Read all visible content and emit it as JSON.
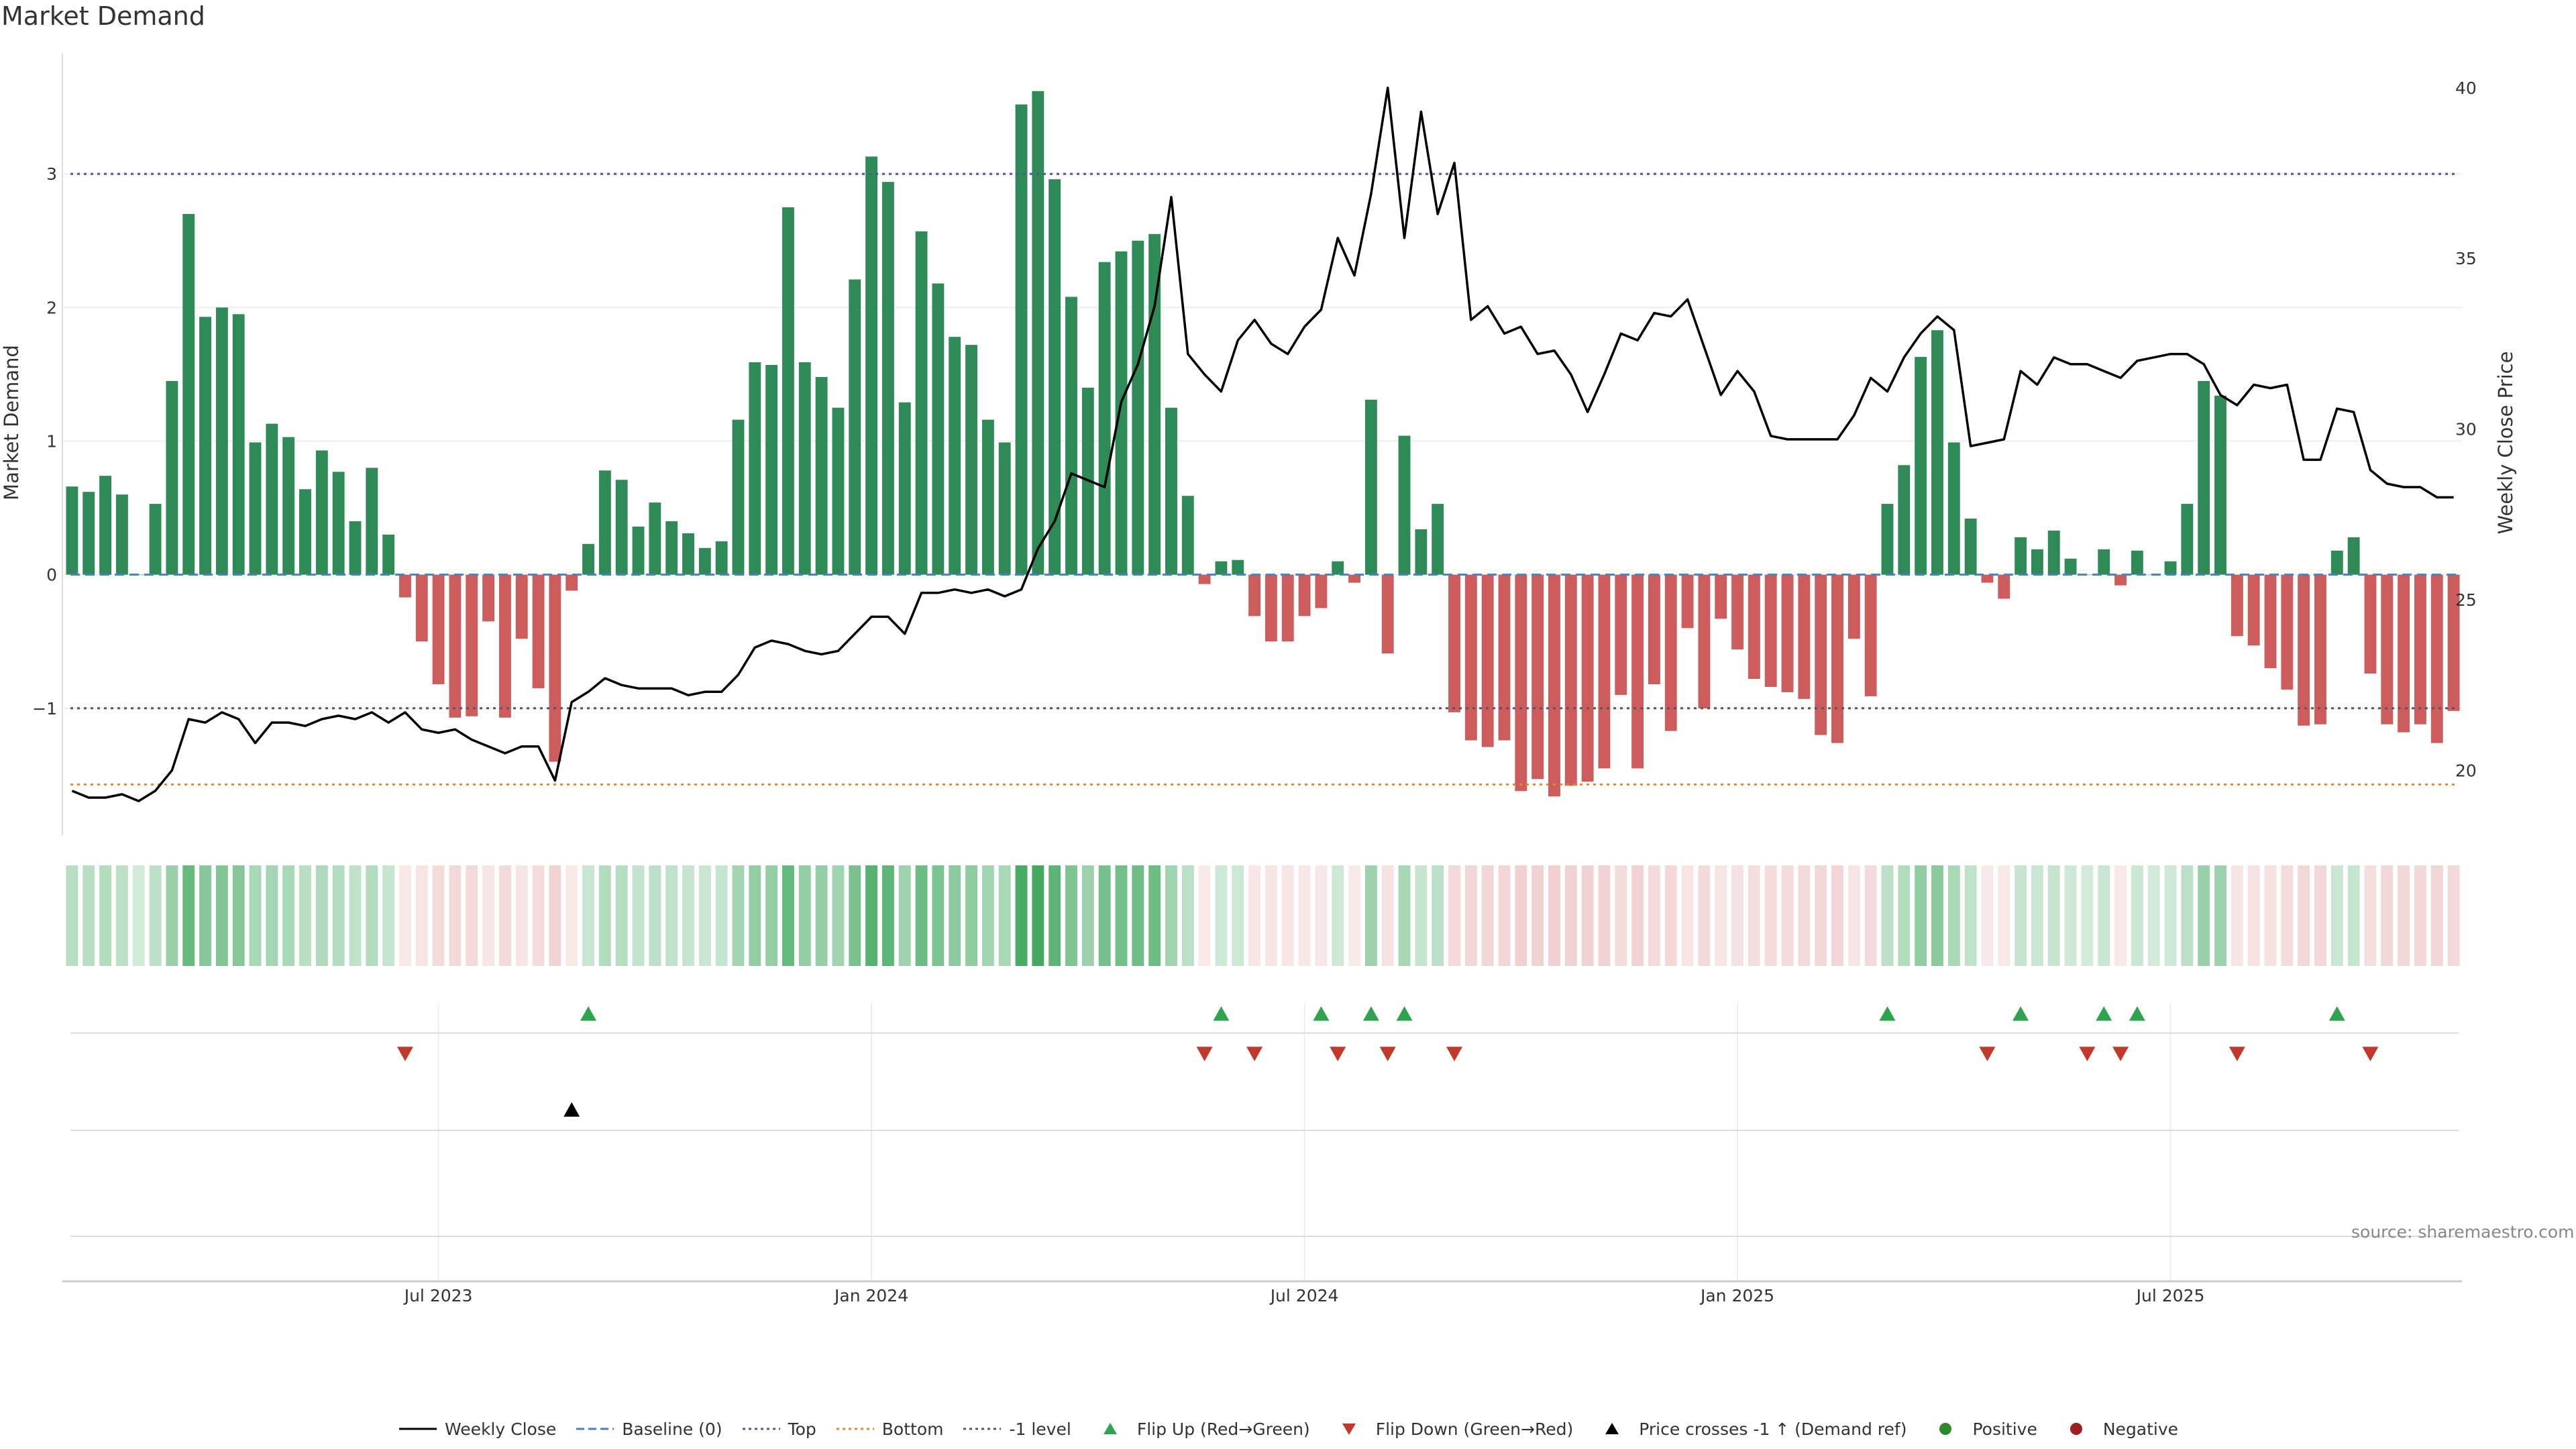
{
  "chart_data": {
    "type": "bar+line",
    "title": "Market Demand",
    "ylabel_left": "Market Demand",
    "ylabel_right": "Weekly Close Price",
    "ylim_left": [
      -1.95,
      3.9
    ],
    "yticks_left": [
      -1,
      0,
      1,
      2,
      3
    ],
    "ylim_right": [
      18.1,
      41.0
    ],
    "yticks_right": [
      20,
      25,
      30,
      35,
      40
    ],
    "reference_lines": {
      "top": 3.0,
      "minus1_level": -1.0,
      "bottom": -1.57,
      "baseline": 0
    },
    "x_tick_labels": [
      {
        "label": "Jul 2023",
        "index": 22
      },
      {
        "label": "Jan 2024",
        "index": 48
      },
      {
        "label": "Jul 2024",
        "index": 74
      },
      {
        "label": "Jan 2025",
        "index": 100
      },
      {
        "label": "Jul 2025",
        "index": 126
      }
    ],
    "demand": [
      0.66,
      0.62,
      0.74,
      0.6,
      0.0,
      0.53,
      1.45,
      2.7,
      1.93,
      2.0,
      1.95,
      0.99,
      1.13,
      1.03,
      0.64,
      0.93,
      0.77,
      0.4,
      0.8,
      0.3,
      -0.17,
      -0.5,
      -0.82,
      -1.07,
      -1.06,
      -0.35,
      -1.07,
      -0.48,
      -0.85,
      -1.4,
      -0.12,
      0.23,
      0.78,
      0.71,
      0.36,
      0.54,
      0.4,
      0.31,
      0.2,
      0.25,
      1.16,
      1.59,
      1.57,
      2.75,
      1.59,
      1.48,
      1.25,
      2.21,
      3.13,
      2.94,
      1.29,
      2.57,
      2.18,
      1.78,
      1.72,
      1.16,
      0.99,
      3.52,
      3.62,
      2.96,
      2.08,
      1.4,
      2.34,
      2.42,
      2.5,
      2.55,
      1.25,
      0.59,
      -0.07,
      0.1,
      0.11,
      -0.31,
      -0.5,
      -0.5,
      -0.31,
      -0.25,
      0.1,
      -0.06,
      1.31,
      -0.59,
      1.04,
      0.34,
      0.53,
      -1.03,
      -1.24,
      -1.29,
      -1.24,
      -1.62,
      -1.53,
      -1.66,
      -1.58,
      -1.55,
      -1.45,
      -0.9,
      -1.45,
      -0.82,
      -1.17,
      -0.4,
      -1.0,
      -0.33,
      -0.56,
      -0.78,
      -0.84,
      -0.88,
      -0.93,
      -1.2,
      -1.26,
      -0.48,
      -0.91,
      0.53,
      0.82,
      1.63,
      1.83,
      0.99,
      0.42,
      -0.06,
      -0.18,
      0.28,
      0.19,
      0.33,
      0.12,
      0.0,
      0.19,
      -0.08,
      0.18,
      0.0,
      0.1,
      0.53,
      1.45,
      1.34,
      -0.46,
      -0.53,
      -0.7,
      -0.86,
      -1.13,
      -1.12,
      0.18,
      0.28,
      -0.74,
      -1.12,
      -1.18,
      -1.12,
      -1.26,
      -1.02
    ],
    "weekly_close": [
      19.4,
      19.2,
      19.2,
      19.3,
      19.1,
      19.4,
      20.0,
      21.5,
      21.4,
      21.7,
      21.5,
      20.8,
      21.4,
      21.4,
      21.3,
      21.5,
      21.6,
      21.5,
      21.7,
      21.4,
      21.7,
      21.2,
      21.1,
      21.2,
      20.9,
      20.7,
      20.5,
      20.7,
      20.7,
      19.7,
      22.0,
      22.3,
      22.7,
      22.5,
      22.4,
      22.4,
      22.4,
      22.2,
      22.3,
      22.3,
      22.8,
      23.6,
      23.8,
      23.7,
      23.5,
      23.4,
      23.5,
      24.0,
      24.5,
      24.5,
      24.0,
      25.2,
      25.2,
      25.3,
      25.2,
      25.3,
      25.1,
      25.3,
      26.5,
      27.3,
      28.7,
      28.5,
      28.3,
      30.8,
      31.9,
      33.6,
      36.8,
      32.2,
      31.6,
      31.1,
      32.6,
      33.2,
      32.5,
      32.2,
      33.0,
      33.5,
      35.6,
      34.5,
      36.9,
      40.0,
      35.6,
      39.3,
      36.3,
      37.8,
      33.2,
      33.6,
      32.8,
      33.0,
      32.2,
      32.3,
      31.6,
      30.5,
      31.6,
      32.8,
      32.6,
      33.4,
      33.3,
      33.8,
      32.4,
      31.0,
      31.7,
      31.1,
      29.8,
      29.7,
      29.7,
      29.7,
      29.7,
      30.4,
      31.5,
      31.1,
      32.1,
      32.8,
      33.3,
      32.9,
      29.5,
      29.6,
      29.7,
      31.7,
      31.3,
      32.1,
      31.9,
      31.9,
      31.7,
      31.5,
      32.0,
      32.1,
      32.2,
      32.2,
      31.9,
      31.0,
      30.7,
      31.3,
      31.2,
      31.3,
      29.1,
      29.1,
      30.6,
      30.5,
      28.8,
      28.4,
      28.3,
      28.3,
      28.0,
      28.0
    ],
    "flip_up_indices": [
      31,
      69,
      75,
      78,
      80,
      109,
      117,
      122,
      124,
      136
    ],
    "flip_down_indices": [
      20,
      68,
      71,
      76,
      79,
      83,
      115,
      121,
      123,
      130,
      138
    ],
    "price_cross_indices": [
      30
    ],
    "legend": [
      {
        "label": "Weekly Close",
        "style": "solid-line",
        "color": "#000000"
      },
      {
        "label": "Baseline (0)",
        "style": "dashed-line",
        "color": "#4a7fc1"
      },
      {
        "label": "Top",
        "style": "dotted-line",
        "color": "#555599"
      },
      {
        "label": "Bottom",
        "style": "dotted-line",
        "color": "#e08a2c"
      },
      {
        "label": "-1 level",
        "style": "dotted-line",
        "color": "#555566"
      },
      {
        "label": "Flip Up (Red→Green)",
        "style": "triangle-up",
        "color": "#2ea44f"
      },
      {
        "label": "Flip Down (Green→Red)",
        "style": "triangle-down",
        "color": "#c0392b"
      },
      {
        "label": "Price crosses -1 ↑ (Demand ref)",
        "style": "triangle-up",
        "color": "#000000"
      },
      {
        "label": "Positive",
        "style": "dot",
        "color": "#2a8a2a"
      },
      {
        "label": "Negative",
        "style": "dot",
        "color": "#a01e1e"
      }
    ],
    "source": "source: sharemaestro.com"
  },
  "colors": {
    "positive_bar": "#2e8b57",
    "negative_bar": "#cd5c5c",
    "price_line": "#000000",
    "top_line": "#555599",
    "bottom_line": "#e08a2c",
    "minus1_line": "#555566",
    "baseline": "#4a7fc1"
  }
}
